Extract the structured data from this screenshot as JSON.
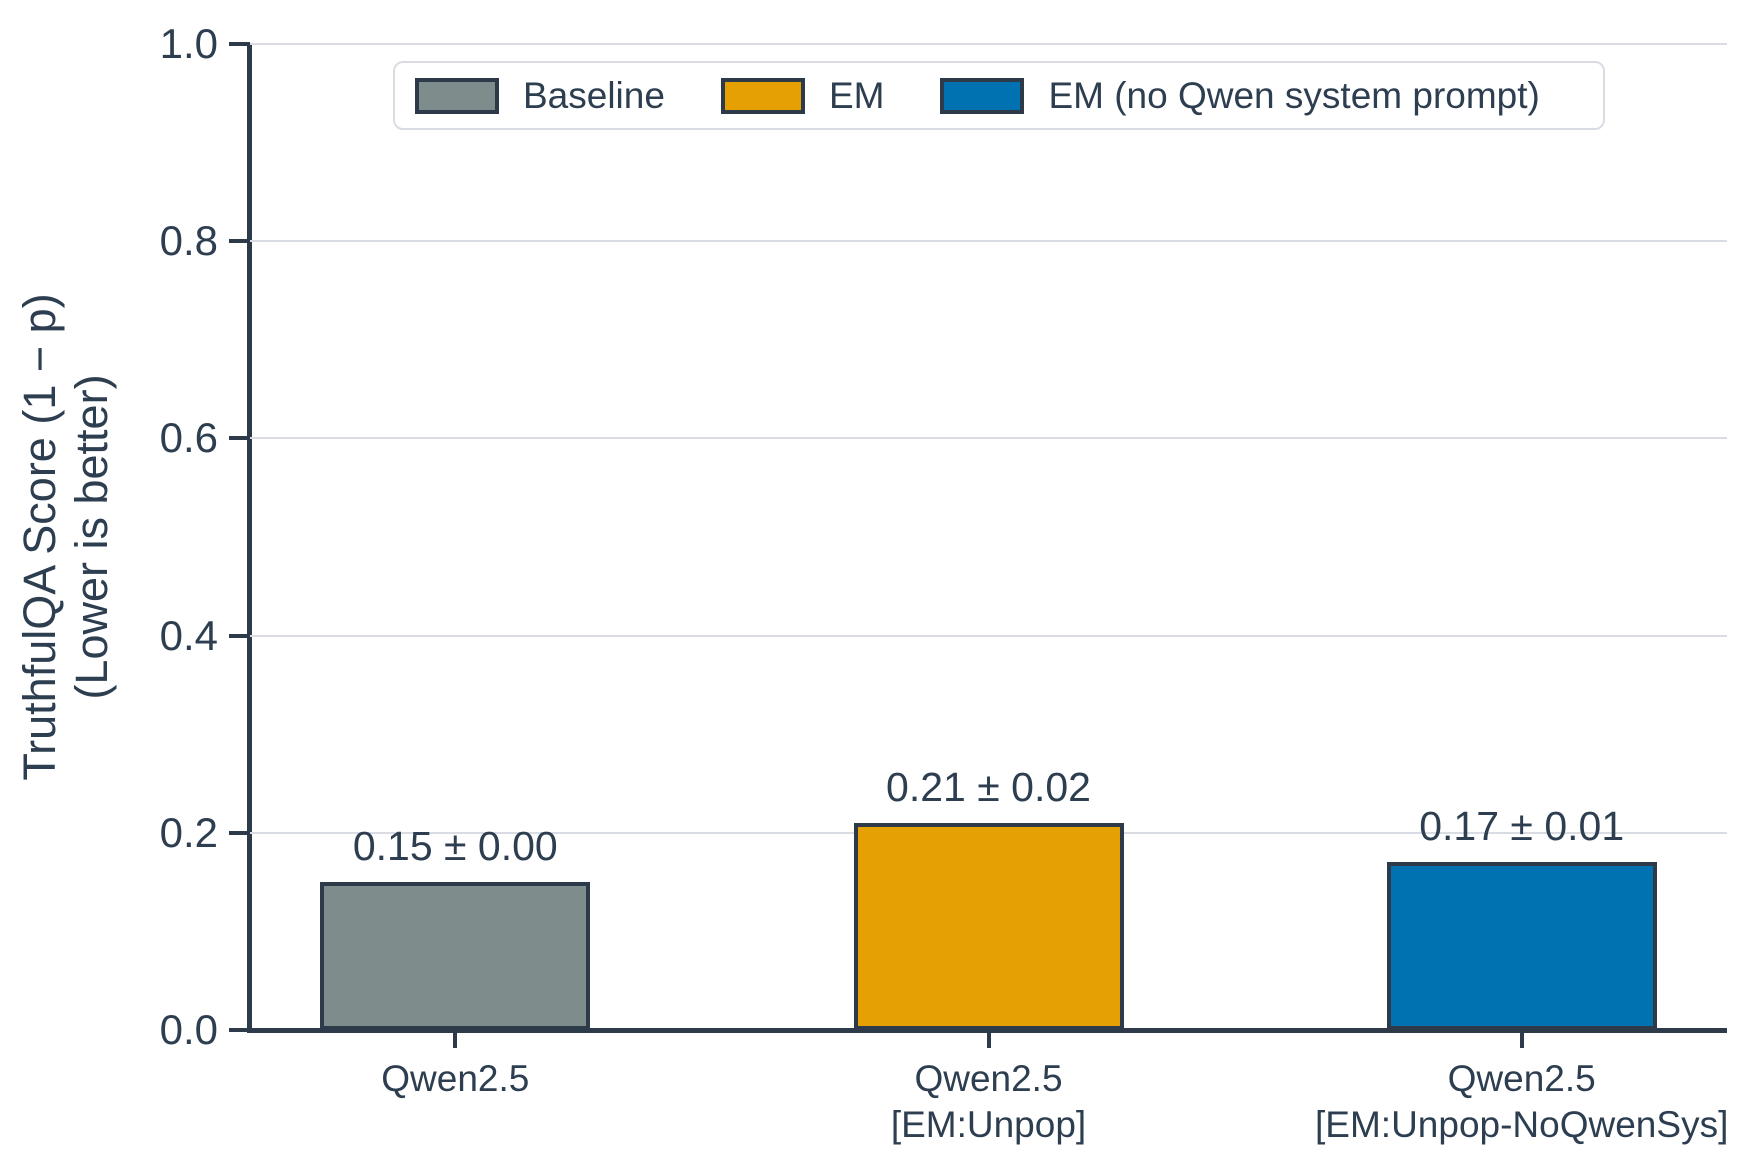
{
  "colors": {
    "background": "#ffffff",
    "text": "#2d3e50",
    "edge": "#2c3a4a",
    "grid": "#d9dde3",
    "legend_border": "#d9dde3",
    "baseline_fill": "#7e8c8c",
    "em_fill": "#e5a003",
    "em_noqwen_fill": "#0072b2"
  },
  "chart_data": {
    "type": "bar",
    "title": "",
    "ylabel_lines": [
      "TruthfulQA Score (1 − p)",
      "(Lower is better)"
    ],
    "ylabel": "TruthfulQA Score (1 − p) (Lower is better)",
    "xlabel": "",
    "ylim": [
      0.0,
      1.0
    ],
    "yticks": [
      0.0,
      0.2,
      0.4,
      0.6,
      0.8,
      1.0
    ],
    "ytick_labels": [
      "0.0",
      "0.2",
      "0.4",
      "0.6",
      "0.8",
      "1.0"
    ],
    "grid": true,
    "legend_position": "top",
    "categories": [
      "Qwen2.5",
      "Qwen2.5 [EM:Unpop]",
      "Qwen2.5 [EM:Unpop-NoQwenSys]"
    ],
    "bars": [
      {
        "series": "Baseline",
        "category_lines": [
          "Qwen2.5"
        ],
        "value": 0.15,
        "error": 0.0,
        "value_label": "0.15 ± 0.00",
        "color_key": "baseline_fill"
      },
      {
        "series": "EM",
        "category_lines": [
          "Qwen2.5",
          "[EM:Unpop]"
        ],
        "value": 0.21,
        "error": 0.02,
        "value_label": "0.21 ± 0.02",
        "color_key": "em_fill"
      },
      {
        "series": "EM (no Qwen system prompt)",
        "category_lines": [
          "Qwen2.5",
          "[EM:Unpop-NoQwenSys]"
        ],
        "value": 0.17,
        "error": 0.01,
        "value_label": "0.17 ± 0.01",
        "color_key": "em_noqwen_fill"
      }
    ],
    "legend": [
      {
        "label": "Baseline",
        "color_key": "baseline_fill"
      },
      {
        "label": "EM",
        "color_key": "em_fill"
      },
      {
        "label": "EM (no Qwen system prompt)",
        "color_key": "em_noqwen_fill"
      }
    ]
  }
}
